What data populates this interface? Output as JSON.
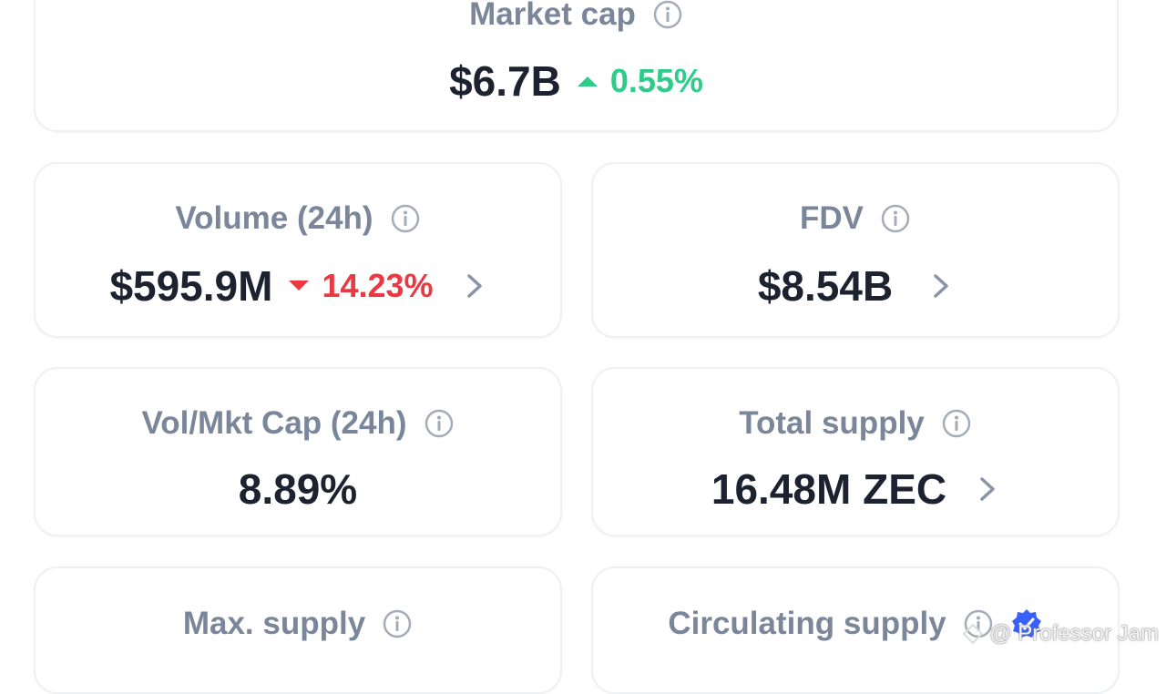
{
  "cards": [
    {
      "label": "Market cap",
      "value": "$6.7B",
      "change": "0.55%"
    },
    {
      "label": "Volume (24h)",
      "value": "$595.9M",
      "change": "14.23%"
    },
    {
      "label": "FDV",
      "value": "$8.54B"
    },
    {
      "label": "Vol/Mkt Cap (24h)",
      "value": "8.89%"
    },
    {
      "label": "Total supply",
      "value": "16.48M ZEC"
    },
    {
      "label": "Max. supply"
    },
    {
      "label": "Circulating supply"
    }
  ],
  "watermark": "@ Professor Jam"
}
